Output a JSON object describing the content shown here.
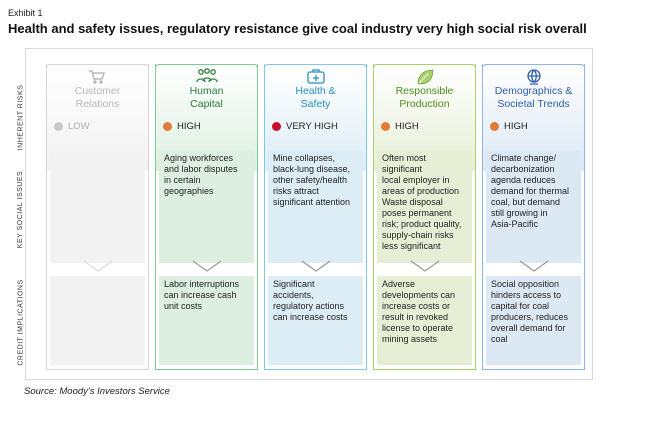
{
  "exhibit": "Exhibit 1",
  "title": "Health and safety issues, regulatory resistance give coal industry very high social risk overall",
  "row_labels": {
    "inherent": "INHERENT RISKS",
    "issues": "KEY SOCIAL ISSUES",
    "credit": "CREDIT IMPLICATIONS"
  },
  "columns": [
    {
      "name": "Customer\nRelations",
      "icon": "cart-icon",
      "risk_level": "LOW",
      "risk_color": "#c8c8c8",
      "accent": "#d6d6d6",
      "text_color": "#b8b8b8",
      "fill": "#f2f2f2",
      "issues": "",
      "credit": ""
    },
    {
      "name": "Human\nCapital",
      "icon": "people-icon",
      "risk_level": "HIGH",
      "risk_color": "#e07b39",
      "accent": "#7ecb93",
      "text_color": "#2e7d3c",
      "fill": "#dcefe0",
      "issues": "Aging workforces\nand labor disputes\nin certain\ngeographies",
      "credit": "Labor interruptions\ncan increase cash\nunit costs"
    },
    {
      "name": "Health &\nSafety",
      "icon": "medical-kit-icon",
      "risk_level": "VERY HIGH",
      "risk_color": "#c8102e",
      "accent": "#7fc8e6",
      "text_color": "#2b8fc0",
      "fill": "#dcedf6",
      "issues": "Mine collapses,\nblack-lung disease,\nother safety/health\nrisks attract\nsignificant attention",
      "credit": "Significant\naccidents,\nregulatory actions\ncan increase costs"
    },
    {
      "name": "Responsible\nProduction",
      "icon": "leaf-icon",
      "risk_level": "HIGH",
      "risk_color": "#e07b39",
      "accent": "#a9d16c",
      "text_color": "#4f8f1f",
      "fill": "#e6efd6",
      "issues": "Often most significant\nlocal employer in\nareas of production\nWaste disposal\nposes permanent\nrisk; product quality,\nsupply-chain risks\nless significant",
      "credit": "Adverse\ndevelopments can\nincrease costs or\nresult in revoked\nlicense to operate\nmining assets"
    },
    {
      "name": "Demographics &\nSocietal Trends",
      "icon": "globe-icon",
      "risk_level": "HIGH",
      "risk_color": "#e07b39",
      "accent": "#8fb5e6",
      "text_color": "#2f5fae",
      "fill": "#dde8f5",
      "issues": "Climate change/\ndecarbonization\nagenda reduces\ndemand for thermal\ncoal, but demand\nstill growing in\nAsia-Pacific",
      "credit": "Social opposition\nhinders access to\ncapital for coal\nproducers, reduces\noverall demand for\ncoal"
    }
  ],
  "source": "Source: Moody's Investors Service"
}
